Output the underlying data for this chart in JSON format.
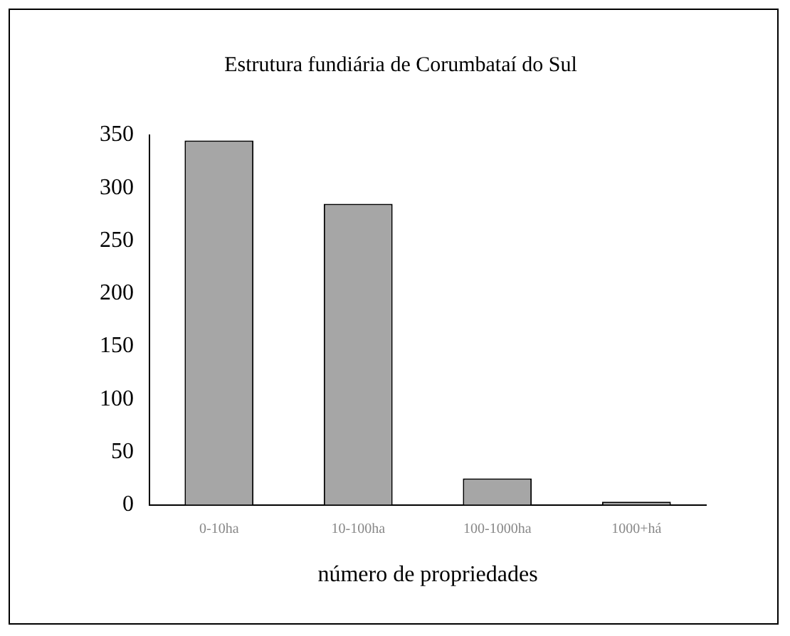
{
  "chart_data": {
    "type": "bar",
    "title": "Estrutura fundiária de Corumbataí do Sul",
    "xlabel": "número de propriedades",
    "categories": [
      "0-10ha",
      "10-100ha",
      "100-1000ha",
      "1000+há"
    ],
    "values": [
      345,
      285,
      25,
      3
    ],
    "color": "#a6a6a6",
    "ylim": [
      0,
      350
    ],
    "yticks": [
      0,
      50,
      100,
      150,
      200,
      250,
      300,
      350
    ],
    "grid": false,
    "legend": false
  }
}
